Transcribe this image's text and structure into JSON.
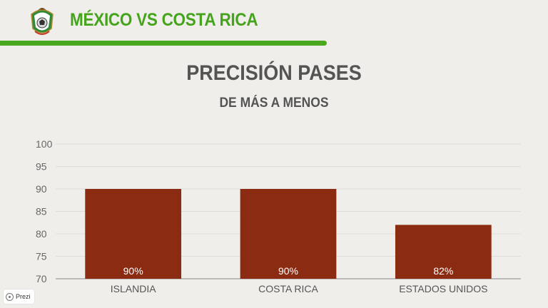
{
  "header": {
    "title": "MÉXICO VS COSTA RICA",
    "logo_icon": "mexico-federation-crest",
    "accent_color": "#46a41c"
  },
  "slide": {
    "title": "PRECISIÓN PASES",
    "subtitle": "DE MÁS A MENOS"
  },
  "chart_data": {
    "type": "bar",
    "categories": [
      "ISLANDIA",
      "COSTA RICA",
      "ESTADOS UNIDOS"
    ],
    "values": [
      90,
      90,
      82
    ],
    "data_labels": [
      "90%",
      "90%",
      "82%"
    ],
    "ylim": [
      70,
      100
    ],
    "yticks": [
      70,
      75,
      80,
      85,
      90,
      95,
      100
    ],
    "grid": true,
    "bar_color": "#8b2c12",
    "label_color": "#ffffff"
  },
  "badge": {
    "label": "Prezi",
    "icon": "prezi-logo-icon"
  }
}
